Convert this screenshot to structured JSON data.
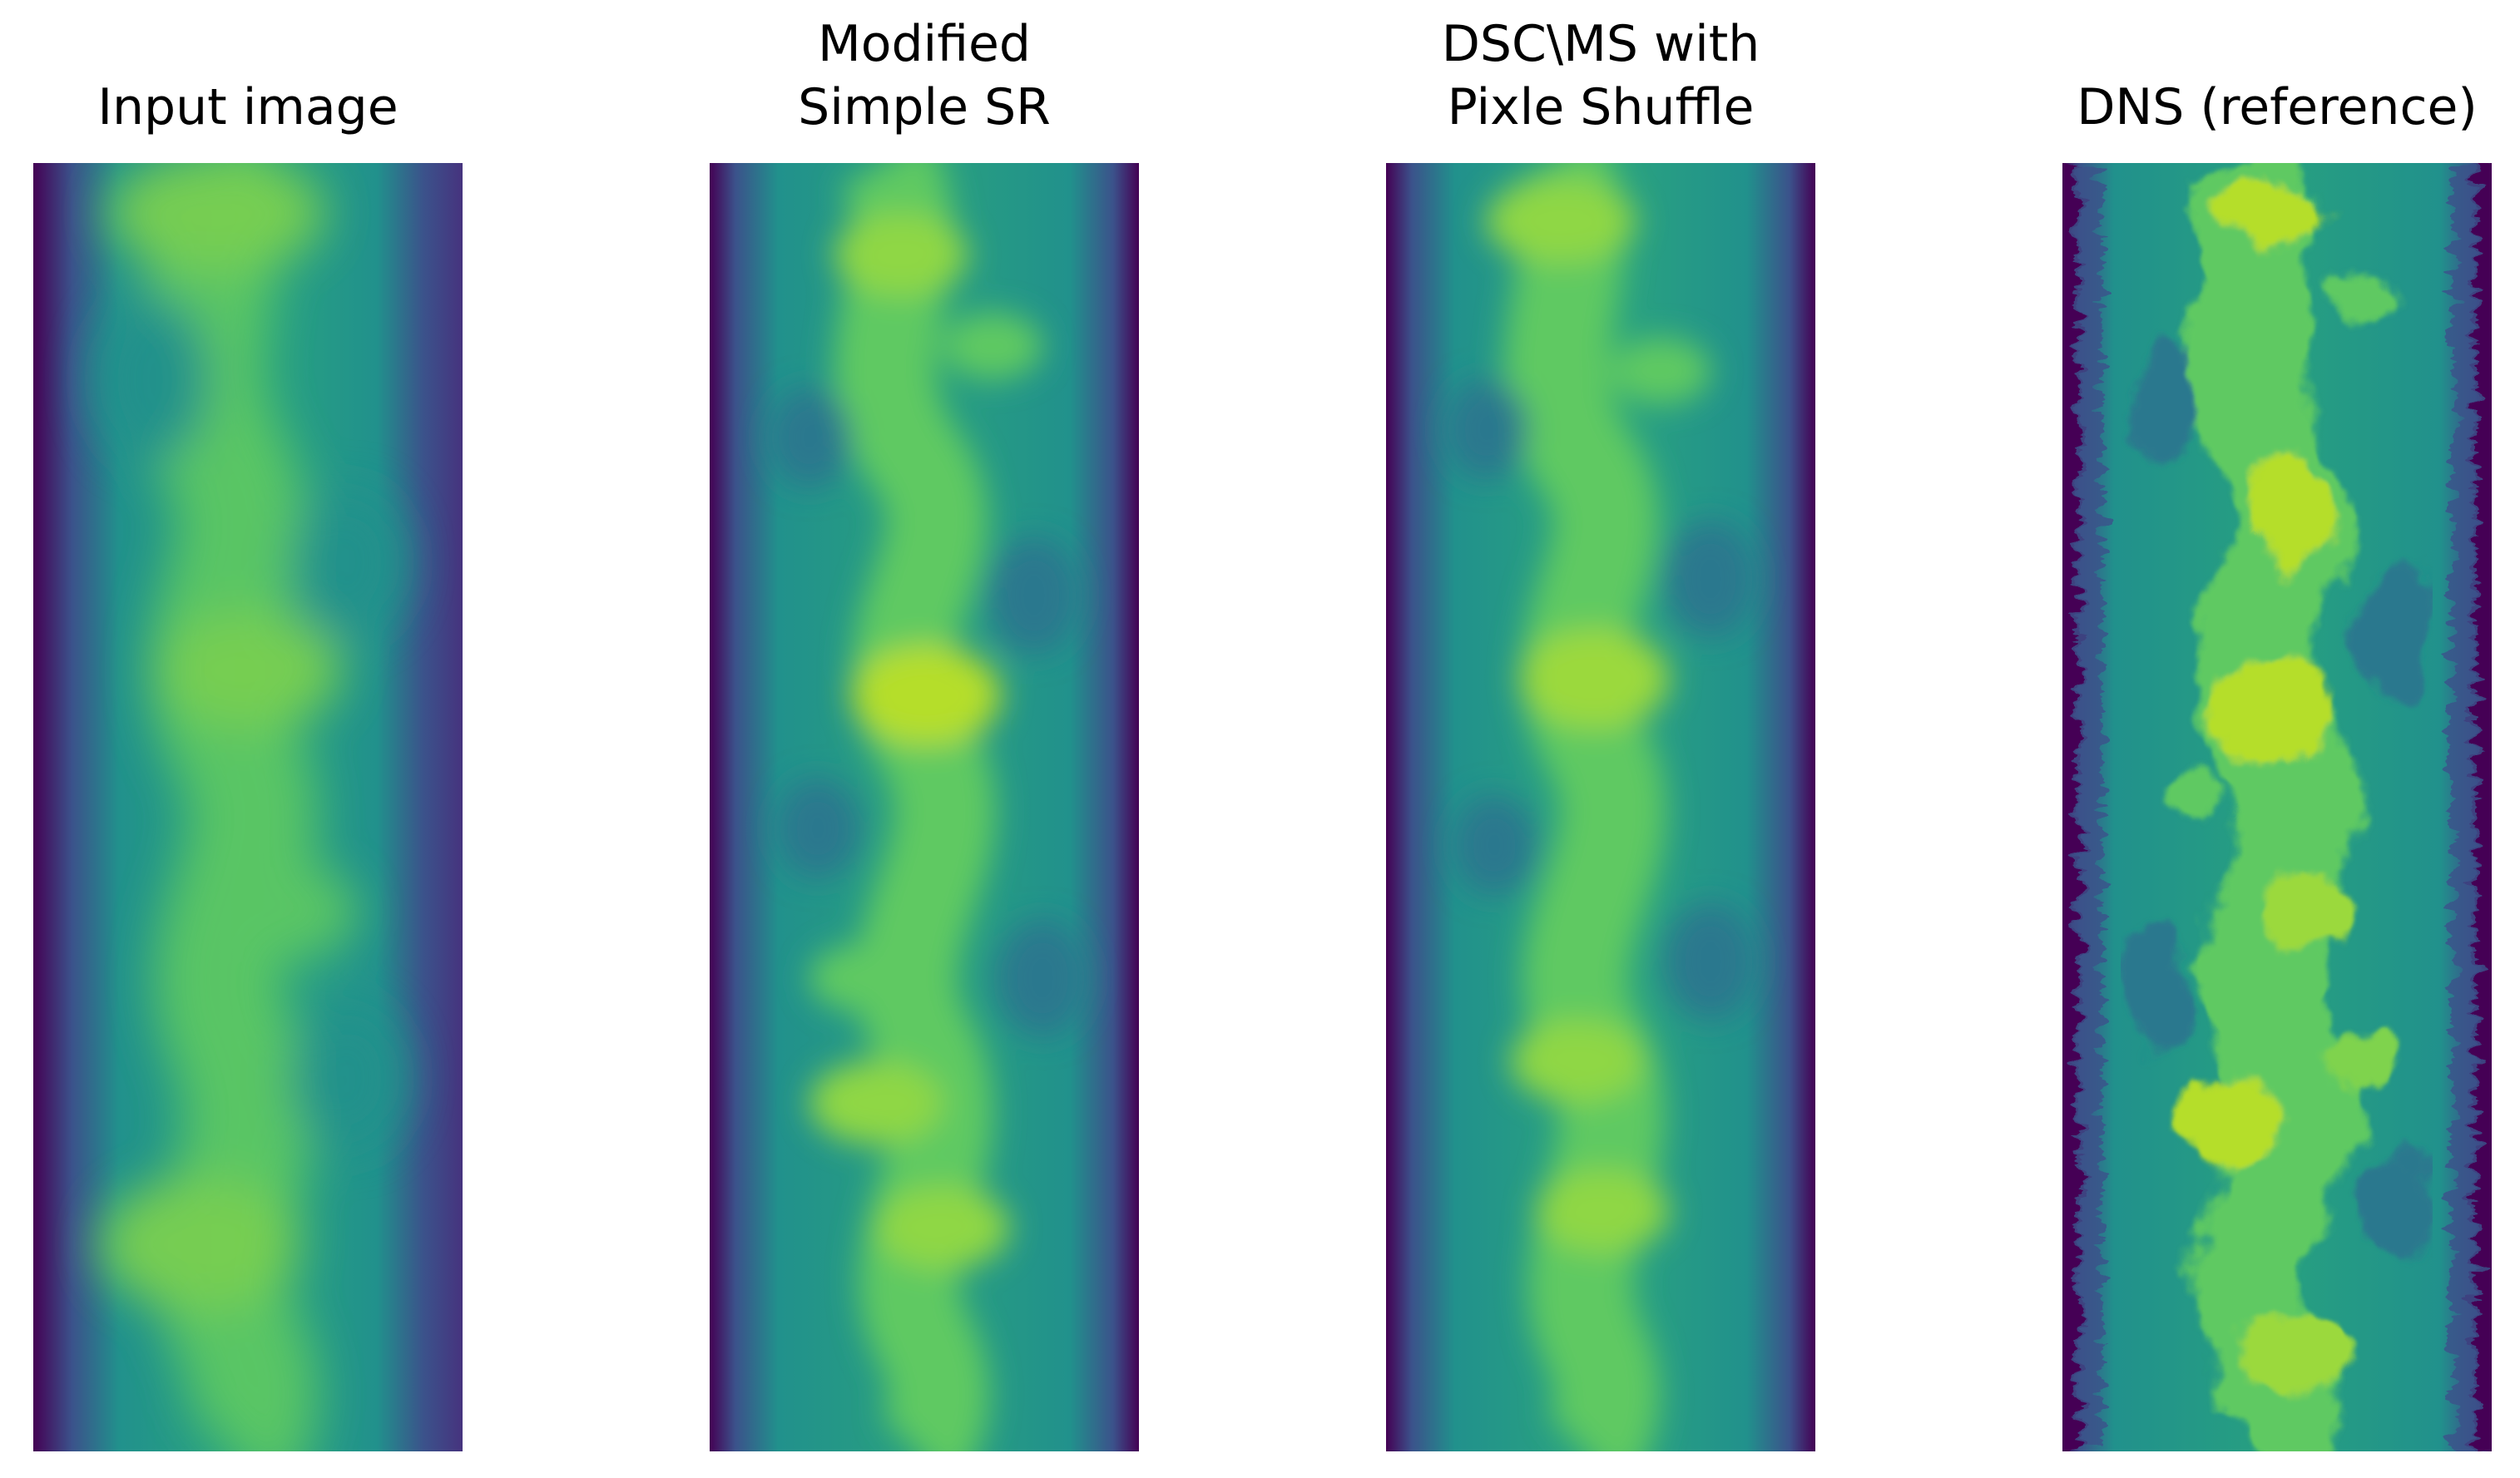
{
  "figure": {
    "panels": [
      {
        "id": "input",
        "title_lines": [
          "Input image"
        ]
      },
      {
        "id": "modified-simple-sr",
        "title_lines": [
          "Modified",
          "Simple SR"
        ]
      },
      {
        "id": "dsc-ms-pixel-shuffle",
        "title_lines": [
          "DSC\\MS with",
          "Pixle Shuffle"
        ]
      },
      {
        "id": "dns-reference",
        "title_lines": [
          "DNS (reference)"
        ]
      }
    ],
    "colormap": [
      "#440154",
      "#3b528b",
      "#21918c",
      "#5ec962",
      "#b5de2b"
    ]
  }
}
